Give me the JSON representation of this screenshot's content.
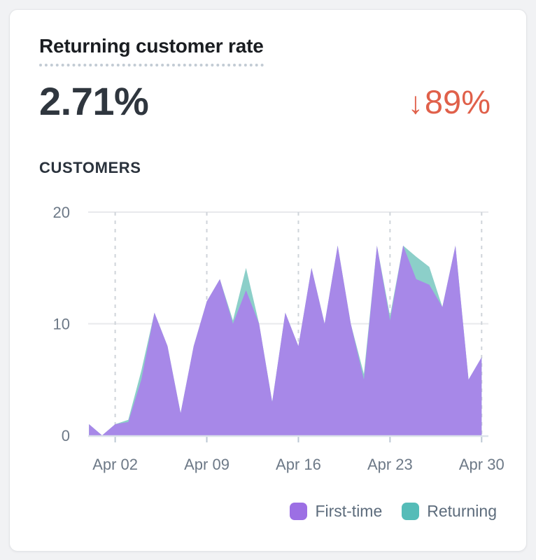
{
  "card": {
    "title": "Returning customer rate",
    "metric_value": "2.71%",
    "delta": {
      "arrow": "↓",
      "value": "89%",
      "direction": "down",
      "color": "#e0604a"
    },
    "section_label": "CUSTOMERS"
  },
  "chart_data": {
    "type": "area",
    "title": "CUSTOMERS",
    "stacked": true,
    "x": [
      "Mar 31",
      "Apr 01",
      "Apr 02",
      "Apr 03",
      "Apr 04",
      "Apr 05",
      "Apr 06",
      "Apr 07",
      "Apr 08",
      "Apr 09",
      "Apr 10",
      "Apr 11",
      "Apr 12",
      "Apr 13",
      "Apr 14",
      "Apr 15",
      "Apr 16",
      "Apr 17",
      "Apr 18",
      "Apr 19",
      "Apr 20",
      "Apr 21",
      "Apr 22",
      "Apr 23",
      "Apr 24",
      "Apr 25",
      "Apr 26",
      "Apr 27",
      "Apr 28",
      "Apr 29",
      "Apr 30"
    ],
    "x_tick_labels": [
      "Apr 02",
      "Apr 09",
      "Apr 16",
      "Apr 23",
      "Apr 30"
    ],
    "x_tick_indices": [
      2,
      9,
      16,
      23,
      30
    ],
    "series": [
      {
        "name": "First-time",
        "legend_color": "#9c6fe4",
        "fill_color": "#a788e8",
        "values": [
          1,
          0,
          1,
          1.2,
          5,
          11,
          8,
          2,
          8,
          12,
          14,
          10,
          13,
          10,
          3,
          11,
          8,
          15,
          10,
          17,
          10,
          5,
          17,
          10.3,
          17,
          14,
          13.5,
          11.5,
          17,
          5,
          7
        ]
      },
      {
        "name": "Returning",
        "legend_color": "#55bcb8",
        "fill_color": "#8ccfc9",
        "values": [
          0,
          0,
          0,
          0.2,
          0.8,
          0,
          0,
          0,
          0,
          0,
          0,
          0.3,
          2,
          0,
          0,
          0,
          0,
          0,
          0,
          0,
          0,
          0.5,
          0,
          0.4,
          0,
          2,
          1.6,
          0,
          0,
          0,
          0
        ]
      }
    ],
    "ylim": [
      0,
      20
    ],
    "yticks": [
      0,
      10,
      20
    ],
    "grid": {
      "horizontal": "solid",
      "vertical": "dashed"
    },
    "legend_position": "bottom-right"
  },
  "legend": {
    "items": [
      {
        "label": "First-time",
        "color": "#9c6fe4"
      },
      {
        "label": "Returning",
        "color": "#55bcb8"
      }
    ]
  },
  "colors": {
    "page_bg": "#f1f2f4",
    "card_bg": "#ffffff",
    "title_text": "#1a1d21",
    "value_text": "#2f363e",
    "axis_text": "#6d7987",
    "grid_line": "#e8e9ec",
    "baseline": "#dce3ea",
    "dashed_line": "#cfd4da"
  }
}
